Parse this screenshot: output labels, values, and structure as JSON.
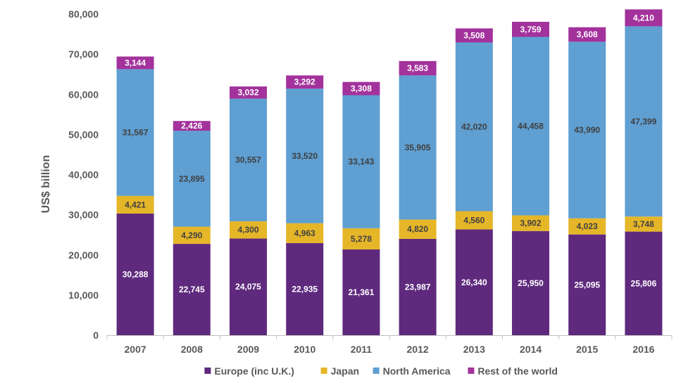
{
  "chart_data": {
    "type": "bar",
    "stacked": true,
    "title": "",
    "xlabel": "",
    "ylabel": "US$ billion",
    "ylim": [
      0,
      80000
    ],
    "yticks": [
      "0",
      "10,000",
      "20,000",
      "30,000",
      "40,000",
      "50,000",
      "60,000",
      "70,000",
      "80,000"
    ],
    "grid": false,
    "legend": "bottom",
    "categories": [
      "2007",
      "2008",
      "2009",
      "2010",
      "2011",
      "2012",
      "2013",
      "2014",
      "2015",
      "2016"
    ],
    "series": [
      {
        "name": "Europe (inc U.K.)",
        "color": "#5f2a7e",
        "label_color": "#ffffff",
        "values": [
          30288,
          22745,
          24075,
          22935,
          21361,
          23987,
          26340,
          25950,
          25095,
          25806
        ],
        "labels": [
          "30,288",
          "22,745",
          "24,075",
          "22,935",
          "21,361",
          "23,987",
          "26,340",
          "25,950",
          "25,095",
          "25,806"
        ]
      },
      {
        "name": "Japan",
        "color": "#e6b629",
        "label_color": "#404040",
        "values": [
          4421,
          4290,
          4300,
          4963,
          5278,
          4820,
          4560,
          3902,
          4023,
          3748
        ],
        "labels": [
          "4,421",
          "4,290",
          "4,300",
          "4,963",
          "5,278",
          "4,820",
          "4,560",
          "3,902",
          "4,023",
          "3,748"
        ]
      },
      {
        "name": "North America",
        "color": "#5f9fd2",
        "label_color": "#404040",
        "values": [
          31567,
          23895,
          30557,
          33520,
          33143,
          35905,
          42020,
          44458,
          43990,
          47399
        ],
        "labels": [
          "31,567",
          "23,895",
          "30,557",
          "33,520",
          "33,143",
          "35,905",
          "42,020",
          "44,458",
          "43,990",
          "47,399"
        ]
      },
      {
        "name": "Rest of the world",
        "color": "#a3329c",
        "label_color": "#ffffff",
        "values": [
          3144,
          2426,
          3032,
          3292,
          3308,
          3583,
          3508,
          3759,
          3608,
          4210
        ],
        "labels": [
          "3,144",
          "2,426",
          "3,032",
          "3,292",
          "3,308",
          "3,583",
          "3,508",
          "3,759",
          "3,608",
          "4,210"
        ]
      }
    ]
  }
}
